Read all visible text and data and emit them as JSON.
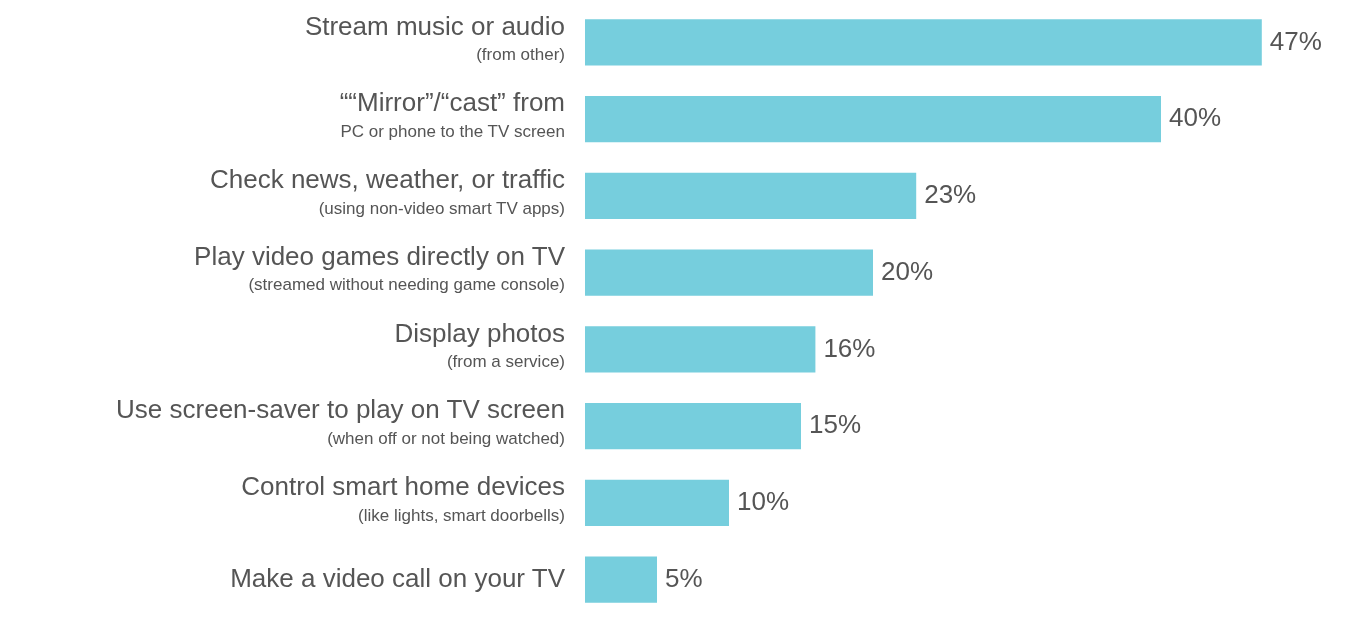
{
  "chart_data": {
    "type": "bar",
    "orientation": "horizontal",
    "categories": [
      "Stream music or audio\n(from other)",
      "““Mirror”/“cast” from\nPC or phone to the TV screen",
      "Check news, weather, or traffic\n(using non-video smart TV apps)",
      "Play video games directly on TV\n(streamed without needing game console)",
      "Display photos\n(from a service)",
      "Use screen-saver to play on TV screen\n(when off or not being watched)",
      "Control smart home devices\n(like lights, smart doorbells)",
      "Make a video call on your TV"
    ],
    "values": [
      47,
      40,
      23,
      20,
      16,
      15,
      10,
      5
    ],
    "value_labels": [
      "47%",
      "40%",
      "23%",
      "20%",
      "16%",
      "15%",
      "10%",
      "5%"
    ],
    "color": "#76cedd",
    "grid": false,
    "legend": false,
    "tick_labels": "y"
  }
}
